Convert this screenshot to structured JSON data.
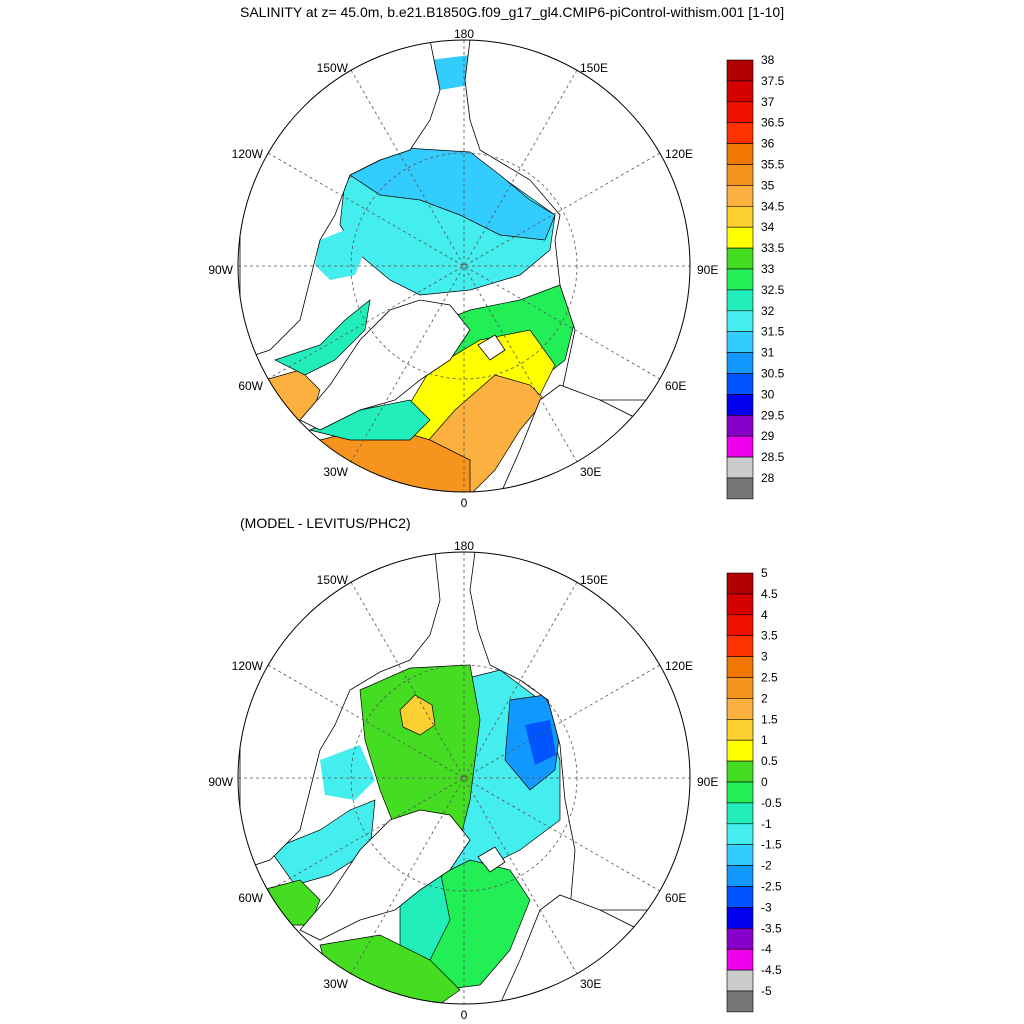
{
  "top_panel": {
    "title": "SALINITY at z=  45.0m, b.e21.B1850G.f09_g17_gl4.CMIP6-piControl-withism.001 [1-10]",
    "lon_labels": [
      "180",
      "150E",
      "120E",
      "90E",
      "60E",
      "30E",
      "0",
      "30W",
      "60W",
      "90W",
      "120W",
      "150W"
    ],
    "colorbar": {
      "ticks": [
        "38",
        "37.5",
        "37",
        "36.5",
        "36",
        "35.5",
        "35",
        "34.5",
        "34",
        "33.5",
        "33",
        "32.5",
        "32",
        "31.5",
        "31",
        "30.5",
        "30",
        "29.5",
        "29",
        "28.5",
        "28"
      ],
      "colors": [
        "#b00000",
        "#d40000",
        "#ee1100",
        "#ff3300",
        "#f07800",
        "#f7941d",
        "#fbb040",
        "#fbd030",
        "#ffff00",
        "#44dd22",
        "#22ee55",
        "#22eebb",
        "#44eeee",
        "#33ccff",
        "#1199ff",
        "#0055ff",
        "#0000ee",
        "#8800cc",
        "#ee00ee",
        "#cccccc",
        "#777777"
      ]
    }
  },
  "bottom_panel": {
    "title": "(MODEL - LEVITUS/PHC2)",
    "lon_labels": [
      "180",
      "150E",
      "120E",
      "90E",
      "60E",
      "30E",
      "0",
      "30W",
      "60W",
      "90W",
      "120W",
      "150W"
    ],
    "colorbar": {
      "ticks": [
        "5",
        "4.5",
        "4",
        "3.5",
        "3",
        "2.5",
        "2",
        "1.5",
        "1",
        "0.5",
        "0",
        "-0.5",
        "-1",
        "-1.5",
        "-2",
        "-2.5",
        "-3",
        "-3.5",
        "-4",
        "-4.5",
        "-5"
      ],
      "colors": [
        "#b00000",
        "#d40000",
        "#ee1100",
        "#ff3300",
        "#f07800",
        "#f7941d",
        "#fbb040",
        "#fbd030",
        "#ffff00",
        "#44dd22",
        "#22ee55",
        "#22eebb",
        "#44eeee",
        "#33ccff",
        "#1199ff",
        "#0055ff",
        "#0000ee",
        "#8800cc",
        "#ee00ee",
        "#cccccc",
        "#777777"
      ]
    }
  }
}
